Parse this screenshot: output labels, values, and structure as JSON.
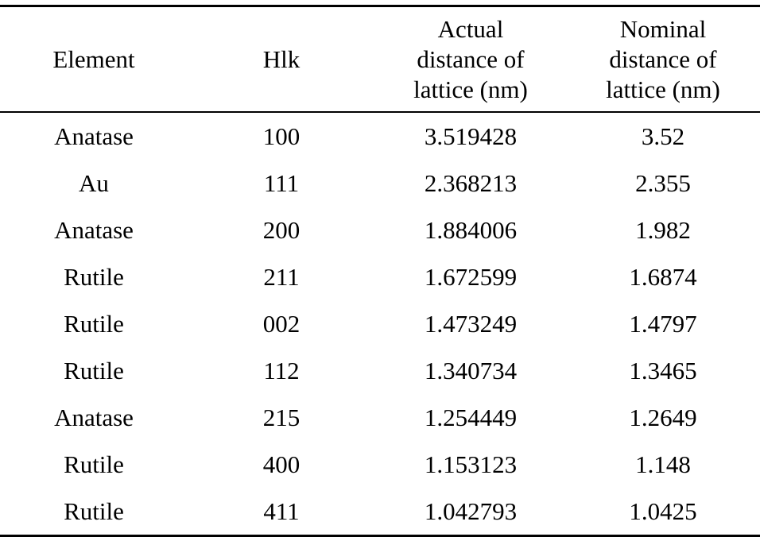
{
  "table": {
    "headers": [
      "Element",
      "Hlk",
      "Actual distance of lattice (nm)",
      "Nominal distance of lattice (nm)"
    ],
    "rows": [
      [
        "Anatase",
        "100",
        "3.519428",
        "3.52"
      ],
      [
        "Au",
        "111",
        "2.368213",
        "2.355"
      ],
      [
        "Anatase",
        "200",
        "1.884006",
        "1.982"
      ],
      [
        "Rutile",
        "211",
        "1.672599",
        "1.6874"
      ],
      [
        "Rutile",
        "002",
        "1.473249",
        "1.4797"
      ],
      [
        "Rutile",
        "112",
        "1.340734",
        "1.3465"
      ],
      [
        "Anatase",
        "215",
        "1.254449",
        "1.2649"
      ],
      [
        "Rutile",
        "400",
        "1.153123",
        "1.148"
      ],
      [
        "Rutile",
        "411",
        "1.042793",
        "1.0425"
      ]
    ]
  }
}
